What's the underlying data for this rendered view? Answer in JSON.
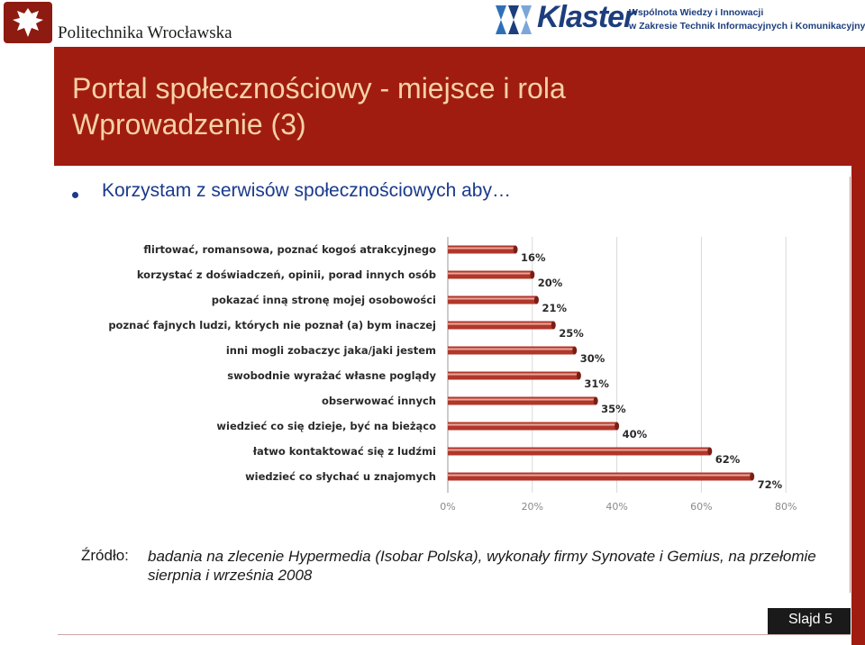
{
  "header": {
    "university_name": "Politechnika Wrocławska",
    "logo_icon": "eagle-shield-icon",
    "klaster_logo_text": "Klaster",
    "klaster_tagline_1": "Wspólnota Wiedzy i Innowacji",
    "klaster_tagline_2": "w Zakresie Technik Informacyjnych i Komunikacyjnych"
  },
  "slide": {
    "title_line_1": "Portal społecznościowy - miejsce i rola",
    "title_line_2": "Wprowadzenie (3)",
    "bullet": "Korzystam z serwisów społecznościowych aby…",
    "source_label": "Źródło:",
    "source_text": "badania na zlecenie Hypermedia (Isobar Polska), wykonały firmy Synovate i Gemius, na przełomie sierpnia i września 2008",
    "slide_number": "Slajd 5"
  },
  "colors": {
    "brand_red": "#a01c11",
    "title_text": "#f6d2a4",
    "accent_blue": "#1a3a8c",
    "bar_fill": "#b1372b",
    "bar_highlight": "#e9a79c"
  },
  "chart_data": {
    "type": "bar",
    "orientation": "horizontal",
    "categories": [
      "flirtować, romansowa, poznać kogoś atrakcyjnego",
      "korzystać z doświadczeń, opinii, porad innych osób",
      "pokazać inną stronę mojej osobowości",
      "poznać fajnych ludzi, których nie poznał (a) bym inaczej",
      "inni mogli zobaczyc jaka/jaki jestem",
      "swobodnie wyrażać własne poglądy",
      "obserwować innych",
      "wiedzieć co się dzieje, być na bieżąco",
      "łatwo kontaktować się z ludźmi",
      "wiedzieć co słychać u znajomych"
    ],
    "values": [
      16,
      20,
      21,
      25,
      30,
      31,
      35,
      40,
      62,
      72
    ],
    "value_labels": [
      "16%",
      "20%",
      "21%",
      "25%",
      "30%",
      "31%",
      "35%",
      "40%",
      "62%",
      "72%"
    ],
    "x_ticks": [
      0,
      20,
      40,
      60,
      80
    ],
    "x_tick_labels": [
      "0%",
      "20%",
      "40%",
      "60%",
      "80%"
    ],
    "xlim": [
      0,
      80
    ],
    "grid": true
  }
}
